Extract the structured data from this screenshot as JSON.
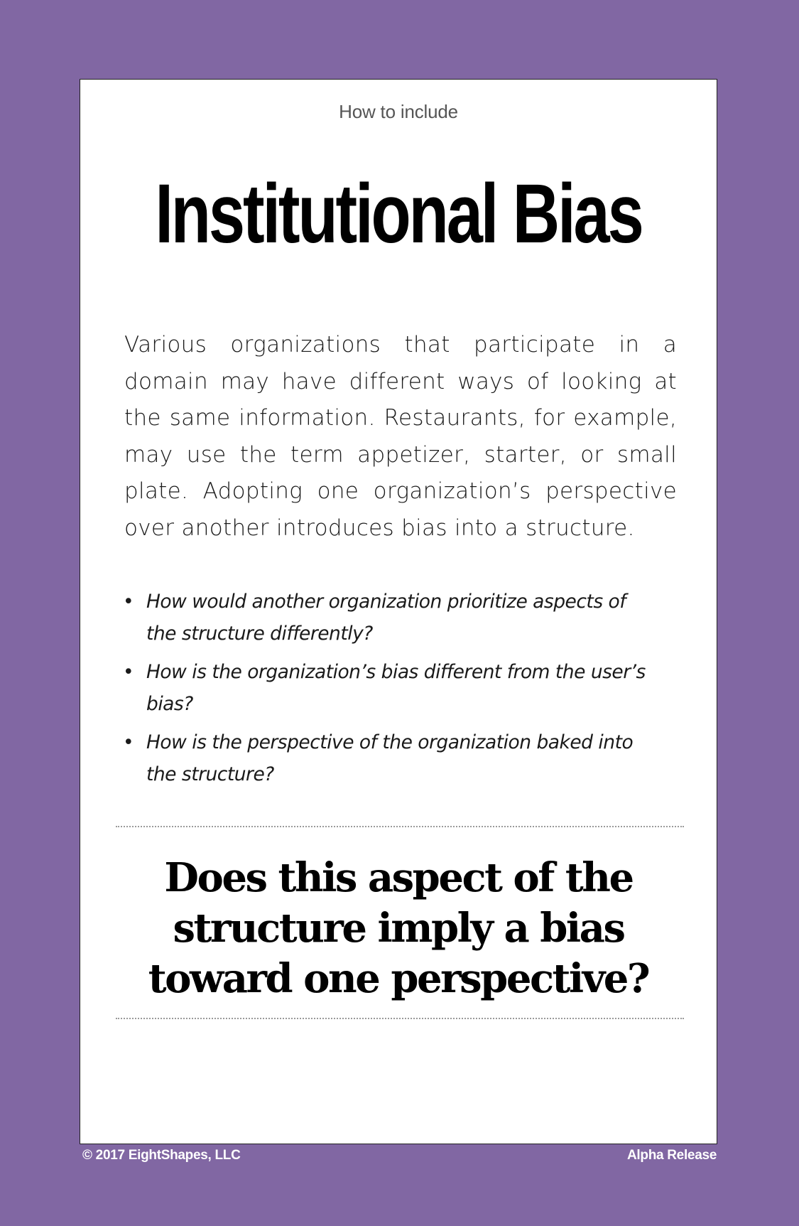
{
  "card": {
    "eyebrow": "How to include",
    "title": "Institutional Bias",
    "body": "Various organizations that participate in a domain may have different ways of looking at the same information. Restaurants, for example, may use the term appetizer, starter, or small plate. Adopting one organization’s perspective over another introduces bias into a structure.",
    "questions": [
      "How would another organization prioritize aspects of the structure differently?",
      "How is the organization’s bias different from the user’s bias?",
      "How is the perspective of the organization baked into the structure?"
    ],
    "prompt": "Does this aspect of the structure imply a bias toward one perspective?"
  },
  "footer": {
    "copyright": "© 2017 EightShapes, LLC",
    "release": "Alpha Release"
  },
  "colors": {
    "background": "#8167a3",
    "card": "#ffffff",
    "text": "#000000"
  }
}
